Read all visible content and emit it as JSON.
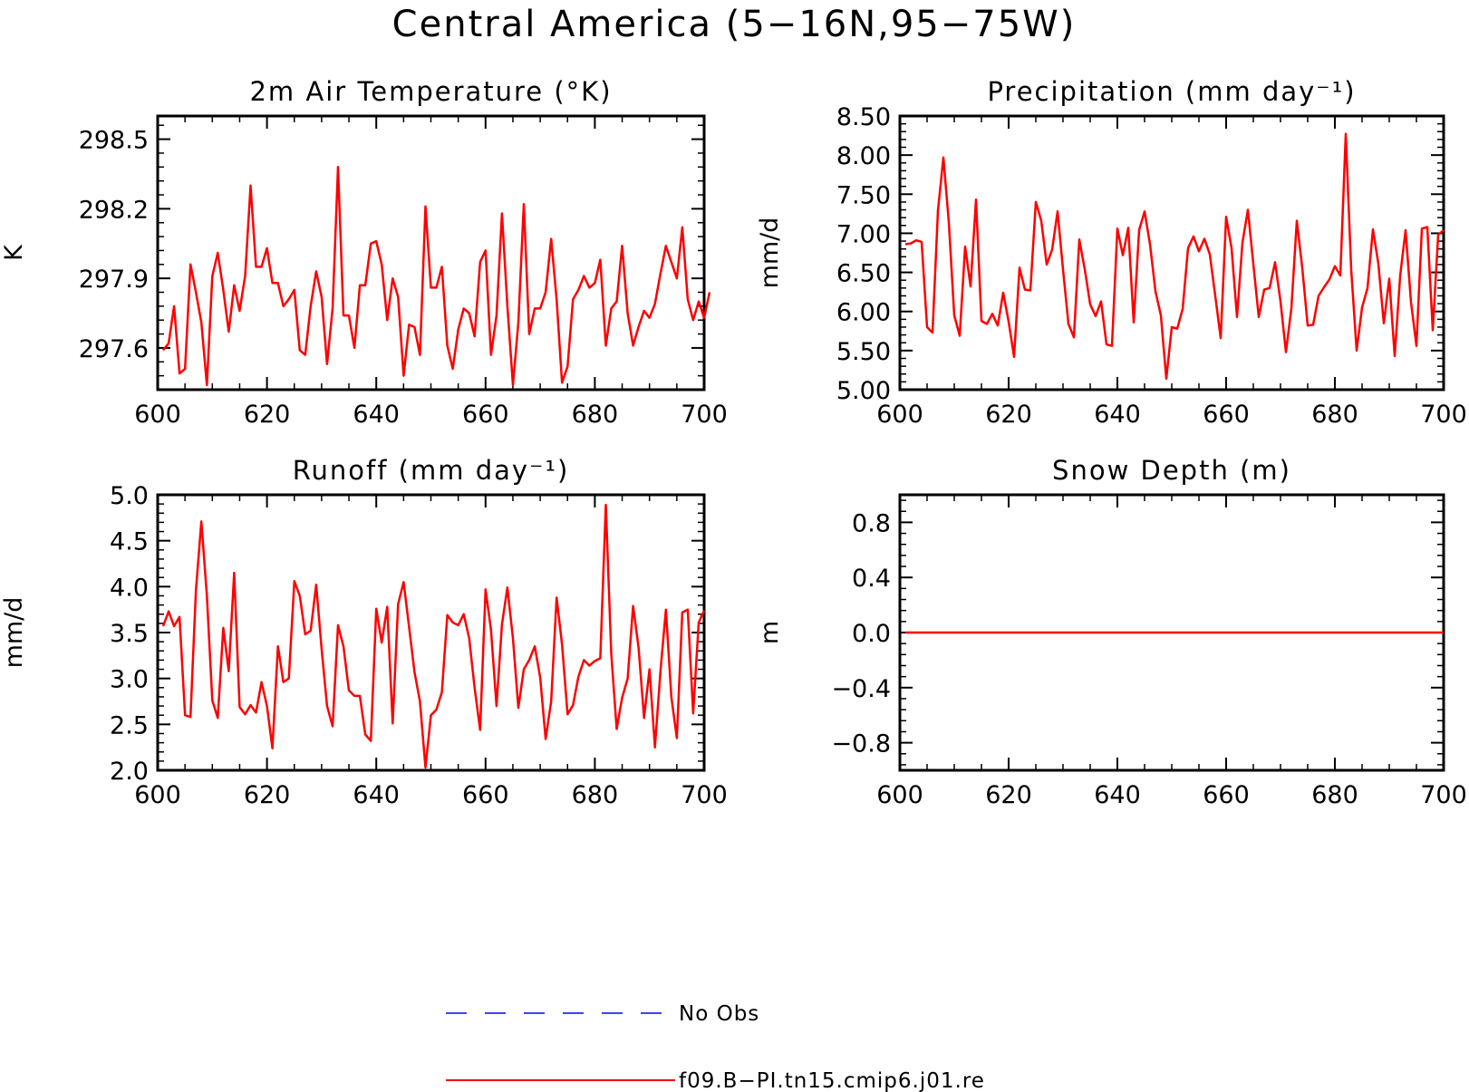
{
  "title": "Central America (5−16N,95−75W)",
  "legend": [
    {
      "label": "No Obs",
      "color": "#0000ff",
      "style": "dashed"
    },
    {
      "label": "f09.B−PI.tn15.cmip6.j01.re",
      "color": "#ff0000",
      "style": "solid"
    }
  ],
  "chart_data": [
    {
      "type": "line",
      "title": "2m Air Temperature (°K)",
      "xlabel": "",
      "ylabel": "K",
      "xlim": [
        600,
        700
      ],
      "ylim": [
        297.42,
        298.6
      ],
      "xticks": [
        600,
        620,
        640,
        660,
        680,
        700
      ],
      "yticks": [
        297.6,
        297.9,
        298.2,
        298.5
      ],
      "ytick_labels": [
        "297.6",
        "297.9",
        "298.2",
        "298.5"
      ],
      "series": [
        {
          "color": "#ff0000",
          "x_start": 601,
          "values": [
            297.59,
            297.62,
            297.78,
            297.49,
            297.51,
            297.96,
            297.84,
            297.71,
            297.44,
            297.91,
            298.01,
            297.85,
            297.67,
            297.87,
            297.76,
            297.91,
            298.3,
            297.95,
            297.95,
            298.03,
            297.88,
            297.88,
            297.78,
            297.81,
            297.85,
            297.59,
            297.57,
            297.78,
            297.93,
            297.82,
            297.53,
            297.77,
            298.38,
            297.74,
            297.74,
            297.6,
            297.87,
            297.87,
            298.05,
            298.06,
            297.96,
            297.72,
            297.9,
            297.82,
            297.48,
            297.7,
            297.69,
            297.57,
            298.21,
            297.86,
            297.86,
            297.95,
            297.61,
            297.51,
            297.68,
            297.77,
            297.75,
            297.65,
            297.97,
            298.02,
            297.57,
            297.74,
            298.18,
            297.78,
            297.44,
            297.71,
            298.22,
            297.66,
            297.77,
            297.77,
            297.84,
            298.07,
            297.81,
            297.45,
            297.52,
            297.81,
            297.85,
            297.91,
            297.86,
            297.88,
            297.98,
            297.61,
            297.77,
            297.8,
            298.04,
            297.75,
            297.61,
            297.69,
            297.76,
            297.73,
            297.79,
            297.92,
            298.04,
            297.97,
            297.9,
            298.12,
            297.81,
            297.72,
            297.8,
            297.73,
            297.84
          ]
        }
      ]
    },
    {
      "type": "line",
      "title": "Precipitation (mm day⁻¹)",
      "xlabel": "",
      "ylabel": "mm/d",
      "xlim": [
        600,
        700
      ],
      "ylim": [
        5.0,
        8.5
      ],
      "xticks": [
        600,
        620,
        640,
        660,
        680,
        700
      ],
      "yticks": [
        5.0,
        5.5,
        6.0,
        6.5,
        7.0,
        7.5,
        8.0,
        8.5
      ],
      "ytick_labels": [
        "5.00",
        "5.50",
        "6.00",
        "6.50",
        "7.00",
        "7.50",
        "8.00",
        "8.50"
      ],
      "series": [
        {
          "color": "#ff0000",
          "x_start": 601,
          "values": [
            6.86,
            6.87,
            6.91,
            6.89,
            5.8,
            5.73,
            7.29,
            7.97,
            7.14,
            5.95,
            5.69,
            6.83,
            6.32,
            7.43,
            5.88,
            5.84,
            5.97,
            5.82,
            6.24,
            5.87,
            5.42,
            6.56,
            6.28,
            6.27,
            7.4,
            7.16,
            6.6,
            6.79,
            7.28,
            6.54,
            5.84,
            5.67,
            6.92,
            6.54,
            6.09,
            5.94,
            6.13,
            5.58,
            5.56,
            7.06,
            6.72,
            7.07,
            5.86,
            7.04,
            7.28,
            6.86,
            6.26,
            5.95,
            5.14,
            5.8,
            5.78,
            6.03,
            6.81,
            6.96,
            6.77,
            6.93,
            6.73,
            6.2,
            5.66,
            7.21,
            6.81,
            5.93,
            6.88,
            7.3,
            6.61,
            5.93,
            6.28,
            6.3,
            6.63,
            6.13,
            5.48,
            6.04,
            7.16,
            6.56,
            5.82,
            5.83,
            6.2,
            6.31,
            6.41,
            6.58,
            6.46,
            8.27,
            6.54,
            5.5,
            6.05,
            6.3,
            7.05,
            6.61,
            5.85,
            6.42,
            5.43,
            6.45,
            7.04,
            6.12,
            5.56,
            7.06,
            7.08,
            5.76,
            6.98,
            7.04
          ]
        }
      ]
    },
    {
      "type": "line",
      "title": "Runoff (mm day⁻¹)",
      "xlabel": "",
      "ylabel": "mm/d",
      "xlim": [
        600,
        700
      ],
      "ylim": [
        2.0,
        5.0
      ],
      "xticks": [
        600,
        620,
        640,
        660,
        680,
        700
      ],
      "yticks": [
        2.0,
        2.5,
        3.0,
        3.5,
        4.0,
        4.5,
        5.0
      ],
      "ytick_labels": [
        "2.0",
        "2.5",
        "3.0",
        "3.5",
        "4.0",
        "4.5",
        "5.0"
      ],
      "series": [
        {
          "color": "#ff0000",
          "x_start": 601,
          "values": [
            3.57,
            3.73,
            3.57,
            3.67,
            2.6,
            2.58,
            3.96,
            4.71,
            3.9,
            2.76,
            2.57,
            3.55,
            3.08,
            4.15,
            2.69,
            2.61,
            2.71,
            2.63,
            2.96,
            2.7,
            2.24,
            3.35,
            2.96,
            3.0,
            4.06,
            3.9,
            3.48,
            3.52,
            4.02,
            3.32,
            2.7,
            2.48,
            3.58,
            3.35,
            2.87,
            2.81,
            2.81,
            2.39,
            2.32,
            3.76,
            3.39,
            3.78,
            2.51,
            3.81,
            4.05,
            3.56,
            3.07,
            2.75,
            2.03,
            2.6,
            2.66,
            2.85,
            3.69,
            3.61,
            3.58,
            3.7,
            3.44,
            2.9,
            2.44,
            3.97,
            3.53,
            2.7,
            3.59,
            3.99,
            3.44,
            2.68,
            3.1,
            3.2,
            3.35,
            3.01,
            2.34,
            2.75,
            3.88,
            3.37,
            2.61,
            2.71,
            3.02,
            3.2,
            3.14,
            3.19,
            3.22,
            4.89,
            3.27,
            2.45,
            2.79,
            3.0,
            3.79,
            3.34,
            2.57,
            3.1,
            2.25,
            3.08,
            3.75,
            2.8,
            2.35,
            3.72,
            3.75,
            2.62,
            3.61,
            3.74
          ]
        }
      ]
    },
    {
      "type": "line",
      "title": "Snow Depth (m)",
      "xlabel": "",
      "ylabel": "m",
      "xlim": [
        600,
        700
      ],
      "ylim": [
        -1.0,
        1.0
      ],
      "xticks": [
        600,
        620,
        640,
        660,
        680,
        700
      ],
      "yticks": [
        -0.8,
        -0.4,
        0.0,
        0.4,
        0.8
      ],
      "ytick_labels": [
        "−0.8",
        "−0.4",
        "0.0",
        "0.4",
        "0.8"
      ],
      "series": [
        {
          "color": "#ff0000",
          "x_start": 601,
          "values": [
            0,
            0,
            0,
            0,
            0,
            0,
            0,
            0,
            0,
            0,
            0,
            0,
            0,
            0,
            0,
            0,
            0,
            0,
            0,
            0,
            0,
            0,
            0,
            0,
            0,
            0,
            0,
            0,
            0,
            0,
            0,
            0,
            0,
            0,
            0,
            0,
            0,
            0,
            0,
            0,
            0,
            0,
            0,
            0,
            0,
            0,
            0,
            0,
            0,
            0,
            0,
            0,
            0,
            0,
            0,
            0,
            0,
            0,
            0,
            0,
            0,
            0,
            0,
            0,
            0,
            0,
            0,
            0,
            0,
            0,
            0,
            0,
            0,
            0,
            0,
            0,
            0,
            0,
            0,
            0,
            0,
            0,
            0,
            0,
            0,
            0,
            0,
            0,
            0,
            0,
            0,
            0,
            0,
            0,
            0,
            0,
            0,
            0,
            0,
            0
          ]
        }
      ]
    }
  ]
}
